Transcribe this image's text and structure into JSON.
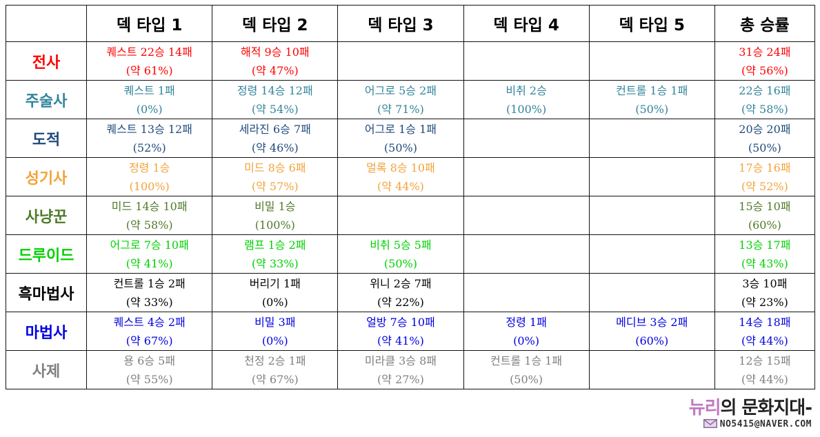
{
  "table": {
    "headers": [
      "",
      "덱 타입 1",
      "덱 타입 2",
      "덱 타입 3",
      "덱 타입 4",
      "덱 타입 5",
      "총 승률"
    ],
    "rows": [
      {
        "class": "전사",
        "color": "#ff0000",
        "cells": [
          [
            "퀘스트 22승 14패",
            "(약 61%)"
          ],
          [
            "해적 9승 10패",
            "(약 47%)"
          ],
          [
            "",
            ""
          ],
          [
            "",
            ""
          ],
          [
            "",
            ""
          ],
          [
            "31승 24패",
            "(약 56%)"
          ]
        ]
      },
      {
        "class": "주술사",
        "color": "#31849b",
        "cells": [
          [
            "퀘스트 1패",
            "(0%)"
          ],
          [
            "정령 14승 12패",
            "(약 54%)"
          ],
          [
            "어그로 5승 2패",
            "(약 71%)"
          ],
          [
            "비취 2승",
            "(100%)"
          ],
          [
            "컨트롤 1승 1패",
            "(50%)"
          ],
          [
            "22승 16패",
            "(약 58%)"
          ]
        ]
      },
      {
        "class": "도적",
        "color": "#1f497d",
        "cells": [
          [
            "퀘스트 13승 12패",
            "(52%)"
          ],
          [
            "세라진 6승 7패",
            "(약 46%)"
          ],
          [
            "어그로 1승 1패",
            "(50%)"
          ],
          [
            "",
            ""
          ],
          [
            "",
            ""
          ],
          [
            "20승 20패",
            "(50%)"
          ]
        ]
      },
      {
        "class": "성기사",
        "color": "#f2a33a",
        "cells": [
          [
            "정령 1승",
            "(100%)"
          ],
          [
            "미드 8승 6패",
            "(약 57%)"
          ],
          [
            "멀록 8승 10패",
            "(약 44%)"
          ],
          [
            "",
            ""
          ],
          [
            "",
            ""
          ],
          [
            "17승 16패",
            "(약 52%)"
          ]
        ]
      },
      {
        "class": "사냥꾼",
        "color": "#4f7a28",
        "cells": [
          [
            "미드 14승 10패",
            "(약 58%)"
          ],
          [
            "비밀 1승",
            "(100%)"
          ],
          [
            "",
            ""
          ],
          [
            "",
            ""
          ],
          [
            "",
            ""
          ],
          [
            "15승 10패",
            "(60%)"
          ]
        ]
      },
      {
        "class": "드루이드",
        "color": "#00d000",
        "cells": [
          [
            "어그로 7승 10패",
            "(약 41%)"
          ],
          [
            "램프 1승 2패",
            "(약 33%)"
          ],
          [
            "비취 5승 5패",
            "(50%)"
          ],
          [
            "",
            ""
          ],
          [
            "",
            ""
          ],
          [
            "13승 17패",
            "(약 43%)"
          ]
        ]
      },
      {
        "class": "흑마법사",
        "color": "#000000",
        "cells": [
          [
            "컨트롤 1승 2패",
            "(약 33%)"
          ],
          [
            "버리기 1패",
            "(0%)"
          ],
          [
            "위니 2승 7패",
            "(약 22%)"
          ],
          [
            "",
            ""
          ],
          [
            "",
            ""
          ],
          [
            "3승 10패",
            "(약 23%)"
          ]
        ]
      },
      {
        "class": "마법사",
        "color": "#0000e0",
        "cells": [
          [
            "퀘스트 4승 2패",
            "(약 67%)"
          ],
          [
            "비밀 3패",
            "(0%)"
          ],
          [
            "얼방 7승 10패",
            "(약 41%)"
          ],
          [
            "정령 1패",
            "(0%)"
          ],
          [
            "메디브 3승 2패",
            "(60%)"
          ],
          [
            "14승 18패",
            "(약 44%)"
          ]
        ]
      },
      {
        "class": "사제",
        "color": "#7f7f7f",
        "cells": [
          [
            "용 6승 5패",
            "(약 55%)"
          ],
          [
            "천정 2승 1패",
            "(약 67%)"
          ],
          [
            "미라클 3승 8패",
            "(약 27%)"
          ],
          [
            "컨트롤 1승 1패",
            "(50%)"
          ],
          [
            "",
            ""
          ],
          [
            "12승 15패",
            "(약 44%)"
          ]
        ]
      }
    ]
  },
  "footer": {
    "title_accent": "뉴리",
    "title_rest": "의 문화지대-",
    "email": "NO5415@NAVER.COM",
    "icon": "envelope-icon",
    "accent_color": "#c07ac0"
  }
}
